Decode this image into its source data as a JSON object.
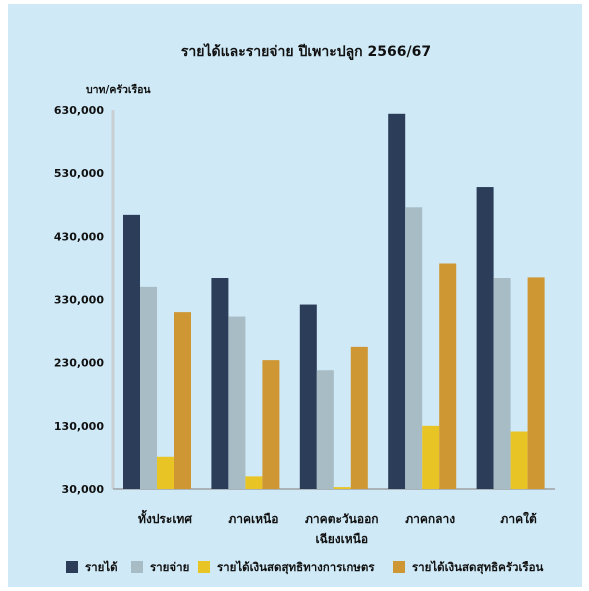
{
  "chart_data": {
    "type": "bar",
    "title": "รายได้และรายจ่าย ปีเพาะปลูก 2566/67",
    "ylabel": "บาท/ครัวเรือน",
    "xlabel": "",
    "ylim": [
      30000,
      630000
    ],
    "yticks": [
      "30,000",
      "130,000",
      "230,000",
      "330,000",
      "430,000",
      "530,000",
      "630,000"
    ],
    "ytick_values": [
      30000,
      130000,
      230000,
      330000,
      430000,
      530000,
      630000
    ],
    "categories": [
      [
        "ทั้งประเทศ"
      ],
      [
        "ภาคเหนือ"
      ],
      [
        "ภาคตะวันออก",
        "เฉียงเหนือ"
      ],
      [
        "ภาคกลาง"
      ],
      [
        "ภาคใต้"
      ]
    ],
    "series": [
      {
        "name": "รายได้",
        "color": "#2b3d58",
        "values": [
          464000,
          364000,
          322000,
          624000,
          508000
        ]
      },
      {
        "name": "รายจ่าย",
        "color": "#a7bcc4",
        "values": [
          350000,
          303000,
          218000,
          476000,
          364000
        ]
      },
      {
        "name": "รายได้เงินสดสุทธิทางการเกษตร",
        "color": "#e9c425",
        "values": [
          81000,
          50000,
          33000,
          130000,
          121000
        ]
      },
      {
        "name": "รายได้เงินสดสุทธิครัวเรือน",
        "color": "#cf9733",
        "values": [
          310000,
          234000,
          255000,
          387000,
          365000
        ]
      }
    ],
    "grid": false,
    "legend_position": "bottom"
  }
}
